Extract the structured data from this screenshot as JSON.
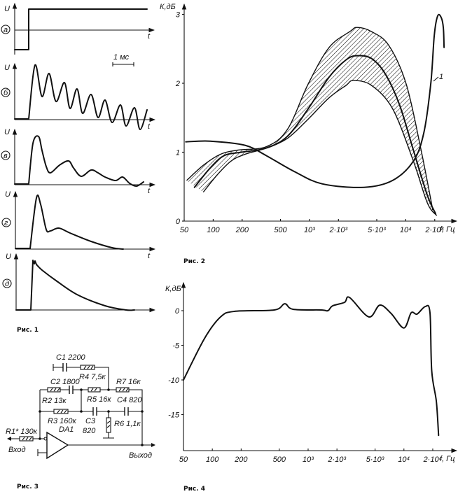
{
  "fig1": {
    "caption": "Рис. 1",
    "axis_u": "U",
    "axis_t": "t",
    "scale_bar": "1 мс",
    "panels": [
      "а",
      "б",
      "в",
      "г",
      "д"
    ]
  },
  "fig3": {
    "caption": "Рис. 3",
    "c1": "C1  2200",
    "r4": "R4  7,5к",
    "c2": "C2  1800",
    "r7": "R7  16к",
    "r2": "R2  13к",
    "r5": "R5  16к",
    "c4": "C4  820",
    "r3": "R3  160к",
    "c3": "C3",
    "c3_val": "820",
    "r6": "R6  1,1к",
    "r1": "R1*  130к",
    "da1": "DA1",
    "input": "Вход",
    "output": "Выход"
  },
  "chart_data": [
    {
      "id": "fig2",
      "type": "line",
      "caption": "Рис. 2",
      "ylabel": "К,дБ",
      "xlabel": "f, Гц",
      "xscale": "log",
      "xlim": [
        50,
        25000
      ],
      "ylim": [
        0,
        3
      ],
      "yticks": [
        {
          "v": 0,
          "label": "0"
        },
        {
          "v": 1,
          "label": "1"
        },
        {
          "v": 2,
          "label": "2"
        },
        {
          "v": 3,
          "label": "3"
        }
      ],
      "xticks": [
        {
          "v": 50,
          "label": "50"
        },
        {
          "v": 100,
          "label": "100"
        },
        {
          "v": 200,
          "label": "200"
        },
        {
          "v": 500,
          "label": "500"
        },
        {
          "v": 1000,
          "label": "10³"
        },
        {
          "v": 2000,
          "label": "2·10³"
        },
        {
          "v": 5000,
          "label": "5·10³"
        },
        {
          "v": 10000,
          "label": "10⁴"
        },
        {
          "v": 20000,
          "label": "2·10⁴"
        }
      ],
      "curve_label": "1",
      "series": [
        {
          "name": "1",
          "x": [
            52,
            93,
            214,
            356,
            695,
            1360,
            3700,
            7300,
            12000,
            15400,
            18200,
            19800,
            21500,
            23400,
            24600,
            25000
          ],
          "y": [
            1.15,
            1.16,
            1.1,
            0.95,
            0.72,
            0.54,
            0.49,
            0.59,
            0.87,
            1.28,
            2.0,
            2.7,
            2.98,
            2.95,
            2.8,
            2.52
          ]
        },
        {
          "name": "mean",
          "x": [
            64,
            93,
            130,
            197,
            356,
            590,
            970,
            1600,
            2400,
            3130,
            4400,
            6100,
            8600,
            12000,
            16800,
            20400
          ],
          "y": [
            0.49,
            0.77,
            0.95,
            1.0,
            1.06,
            1.23,
            1.63,
            2.09,
            2.34,
            2.4,
            2.36,
            2.14,
            1.69,
            1.03,
            0.37,
            0.11
          ]
        },
        {
          "name": "upper",
          "x": [
            53,
            79,
            119,
            181,
            356,
            590,
            970,
            1600,
            2630,
            3130,
            4400,
            6660,
            10100,
            14200,
            19100
          ],
          "y": [
            0.59,
            0.81,
            0.97,
            1.03,
            1.08,
            1.33,
            1.99,
            2.52,
            2.75,
            2.81,
            2.75,
            2.55,
            1.99,
            1.08,
            0.16
          ]
        },
        {
          "name": "lower",
          "x": [
            79,
            110,
            153,
            214,
            356,
            590,
            970,
            1600,
            2400,
            2850,
            4400,
            7300,
            12000,
            16800,
            21000
          ],
          "y": [
            0.42,
            0.67,
            0.87,
            0.97,
            1.06,
            1.2,
            1.48,
            1.79,
            1.97,
            2.04,
            1.97,
            1.63,
            0.87,
            0.26,
            0.08
          ]
        }
      ]
    },
    {
      "id": "fig4",
      "type": "line",
      "caption": "Рис. 4",
      "ylabel": "К,дБ",
      "xlabel": "f, Гц",
      "xscale": "log",
      "xlim": [
        50,
        25000
      ],
      "ylim": [
        -20,
        1.5
      ],
      "yticks": [
        {
          "v": 0,
          "label": "0"
        },
        {
          "v": -5,
          "label": "-5"
        },
        {
          "v": -10,
          "label": "-10"
        },
        {
          "v": -15,
          "label": "-15"
        }
      ],
      "xticks": [
        {
          "v": 50,
          "label": "50"
        },
        {
          "v": 100,
          "label": "100"
        },
        {
          "v": 200,
          "label": "200"
        },
        {
          "v": 500,
          "label": "500"
        },
        {
          "v": 1000,
          "label": "10³"
        },
        {
          "v": 2000,
          "label": "2·10³"
        },
        {
          "v": 5000,
          "label": "5·10³"
        },
        {
          "v": 10000,
          "label": "10⁴"
        },
        {
          "v": 20000,
          "label": "2·10⁴"
        }
      ],
      "series": [
        {
          "name": "response",
          "x": [
            50,
            83,
            122,
            170,
            443,
            570,
            694,
            1365,
            1610,
            1800,
            2400,
            2710,
            4300,
            5600,
            7350,
            9980,
            11900,
            13700,
            16700,
            18700,
            19500,
            21800,
            23000
          ],
          "y": [
            -10,
            -4.0,
            -0.9,
            -0.1,
            0.1,
            1.0,
            0.2,
            0.1,
            0,
            0.7,
            1.2,
            1.9,
            -0.9,
            0.8,
            -0.4,
            -2.5,
            -0.3,
            -0.5,
            0.6,
            -0.3,
            -8.7,
            -13.1,
            -18.0
          ]
        }
      ]
    }
  ]
}
